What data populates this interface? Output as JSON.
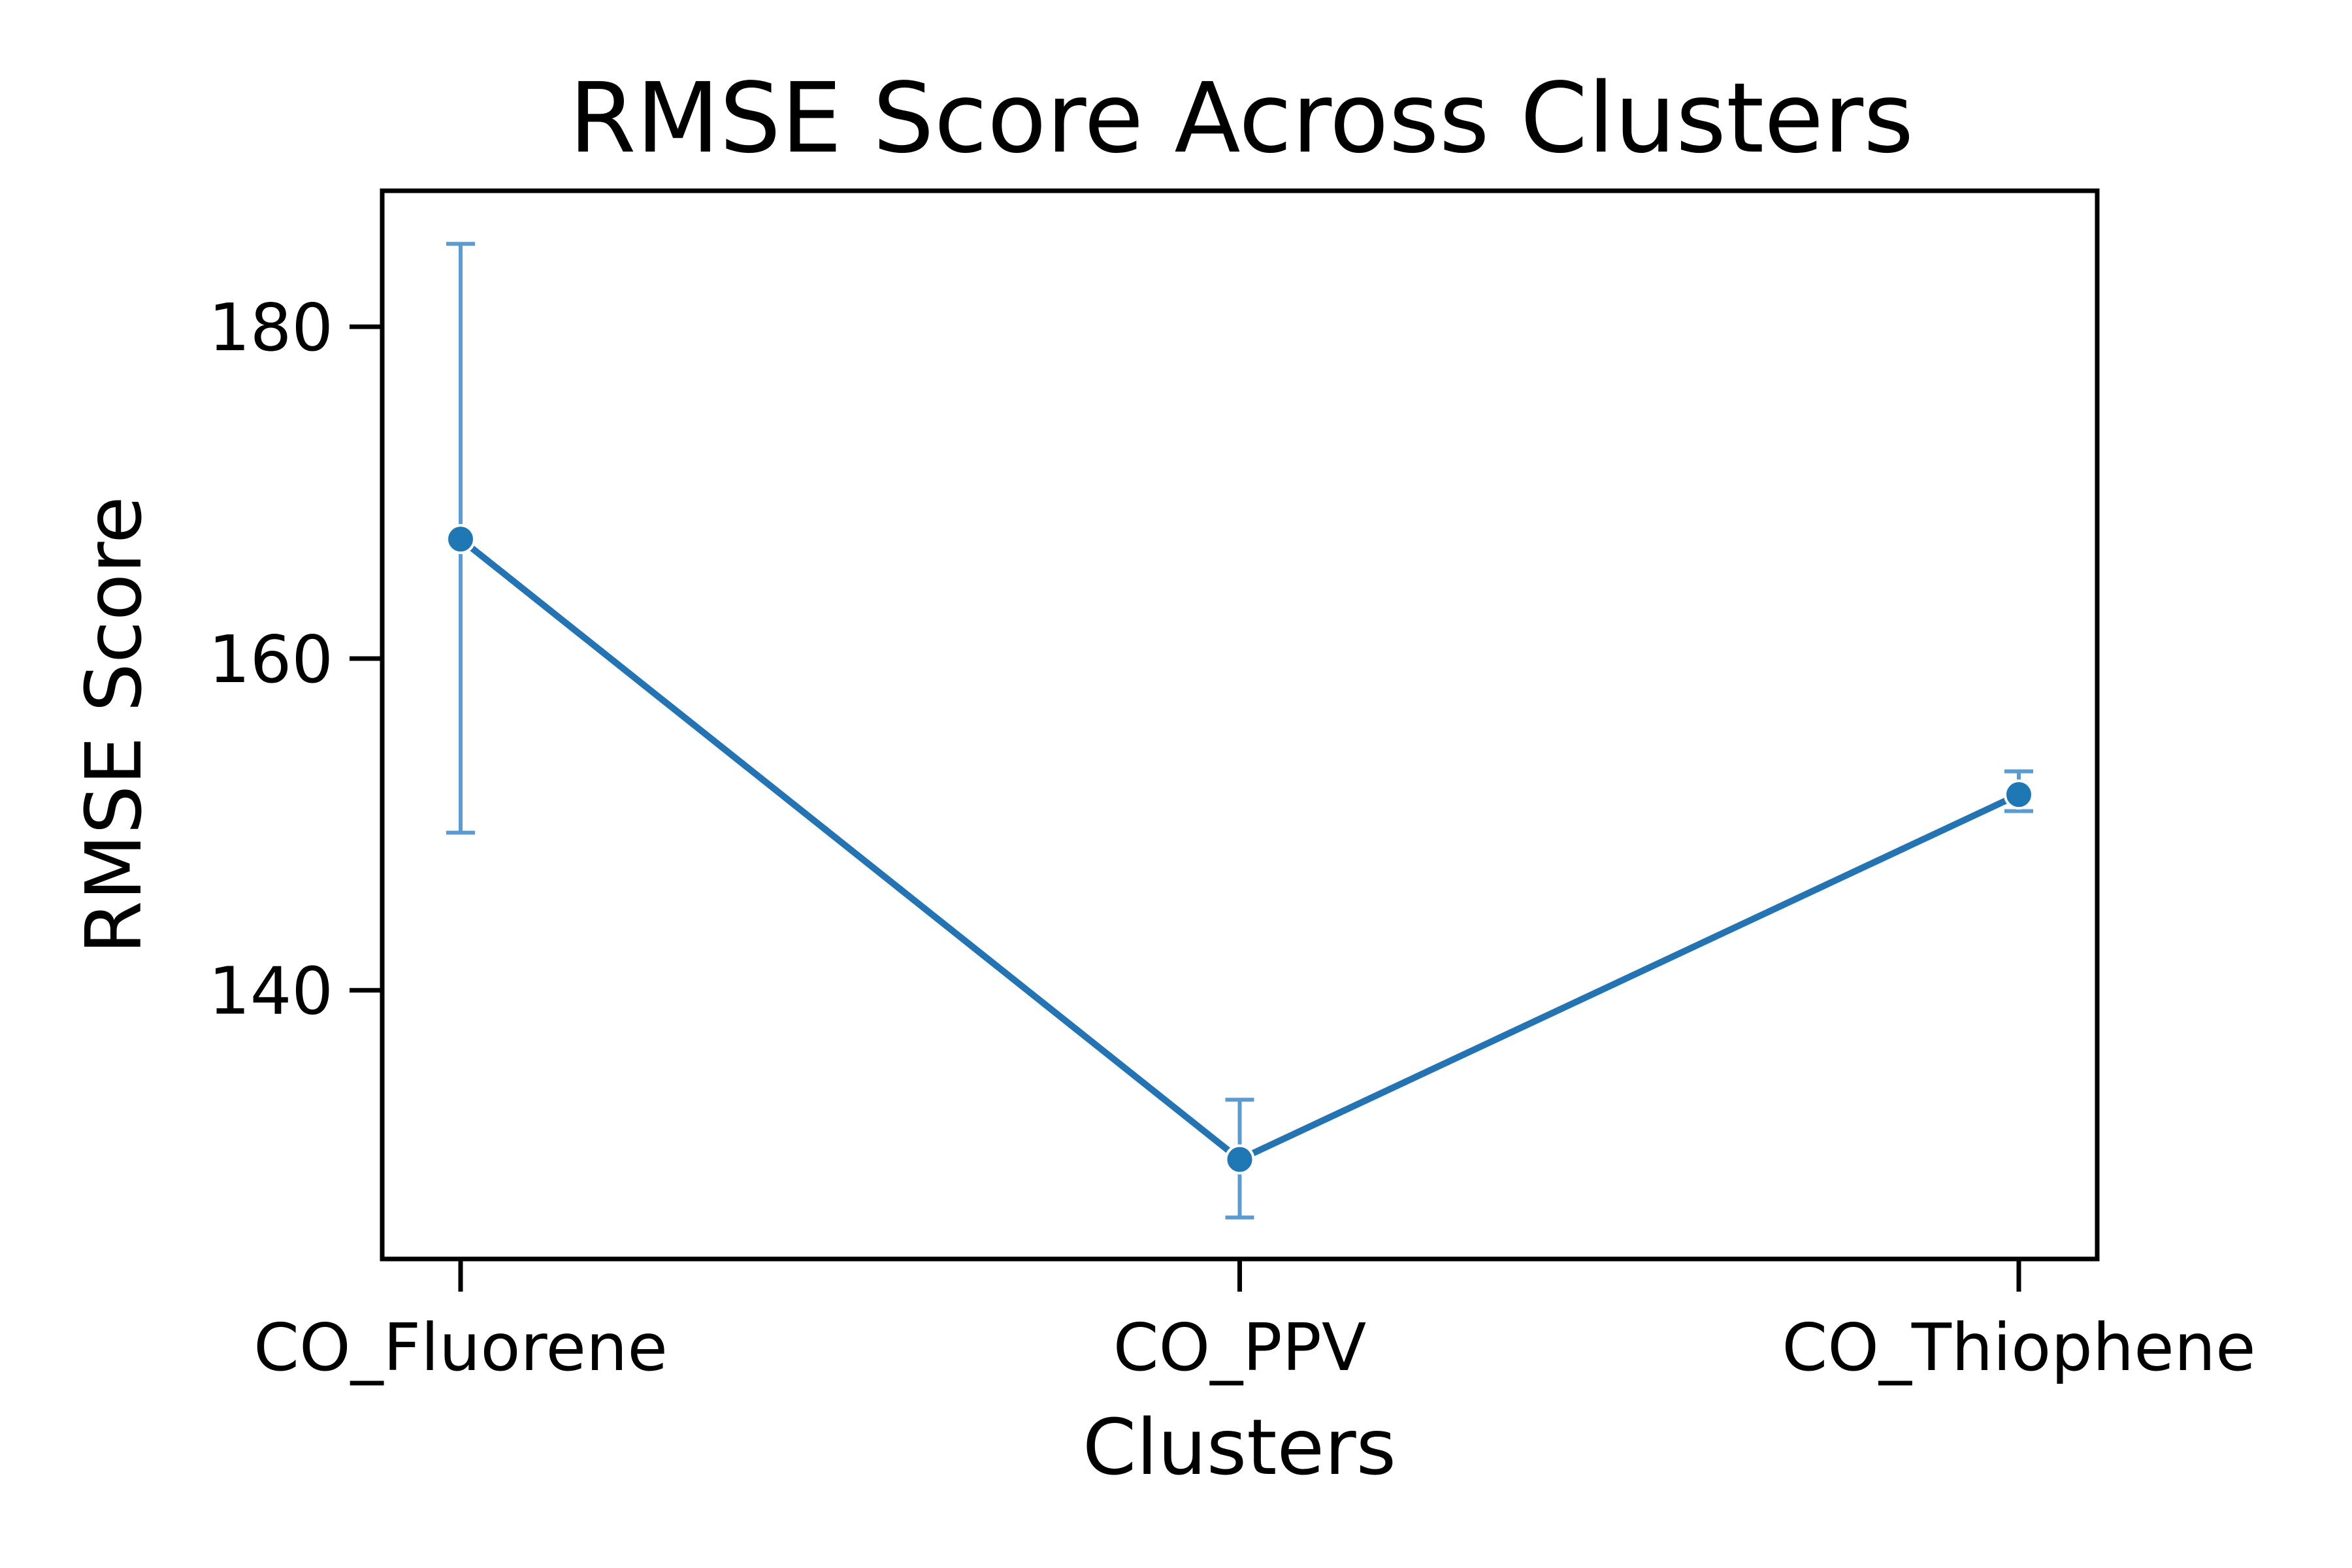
{
  "chart_data": {
    "type": "line",
    "title": "RMSE Score Across Clusters",
    "xlabel": "Clusters",
    "ylabel": "RMSE Score",
    "categories": [
      "CO_Fluorene",
      "CO_PPV",
      "CO_Thiophene"
    ],
    "values": [
      167.2,
      129.8,
      151.8
    ],
    "error_low": [
      149.5,
      126.3,
      150.8
    ],
    "error_high": [
      185.0,
      133.4,
      153.2
    ],
    "yticks": [
      140,
      160,
      180
    ],
    "ylim": [
      123.8,
      188.2
    ],
    "grid": false,
    "legend": "none",
    "colors": {
      "line": "#2474b4",
      "marker": "#1f77b4",
      "errorbar": "#5b9bd0",
      "marker_edge": "#ffffff",
      "axes": "#000000"
    }
  }
}
